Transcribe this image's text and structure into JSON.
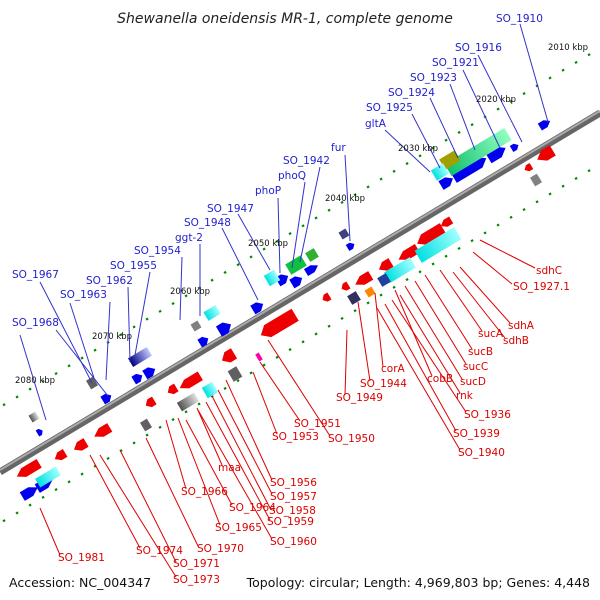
{
  "title": "Shewanella oneidensis MR-1, complete genome",
  "footer": {
    "accession": "Accession: NC_004347",
    "summary": "Topology: circular; Length: 4,969,803 bp; Genes: 4,448"
  },
  "scale_labels": [
    "2010 kbp",
    "2020 kbp",
    "2030 kbp",
    "2040 kbp",
    "2050 kbp",
    "2060 kbp",
    "2070 kbp",
    "2080 kbp"
  ],
  "top_strand_labels": [
    "SO_1910",
    "SO_1916",
    "SO_1921",
    "SO_1923",
    "SO_1924",
    "SO_1925",
    "gltA",
    "fur",
    "SO_1942",
    "phoQ",
    "phoP",
    "SO_1947",
    "SO_1948",
    "ggt-2",
    "SO_1954",
    "SO_1955",
    "SO_1962",
    "SO_1967",
    "SO_1963",
    "SO_1968"
  ],
  "bottom_strand_labels": [
    "sdhC",
    "SO_1927.1",
    "sdhA",
    "sdhB",
    "sucA",
    "sucB",
    "sucC",
    "sucD",
    "corA",
    "cobB",
    "SO_1944",
    "rnk",
    "SO_1936",
    "SO_1939",
    "SO_1940",
    "SO_1949",
    "SO_1950",
    "SO_1951",
    "SO_1953",
    "SO_1956",
    "SO_1957",
    "SO_1958",
    "SO_1959",
    "SO_1960",
    "maa",
    "SO_1964",
    "SO_1965",
    "SO_1966",
    "SO_1970",
    "SO_1971",
    "SO_1973",
    "SO_1974",
    "SO_1981"
  ],
  "colors": {
    "forward_gene": "#0000ee",
    "reverse_gene": "#ee0000",
    "backbone": "#777777",
    "scale_dots": "#008800",
    "label_blue": "#2222cc",
    "label_red": "#dd0000"
  }
}
